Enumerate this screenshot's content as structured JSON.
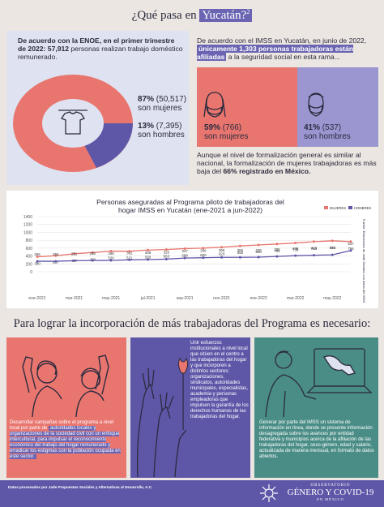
{
  "header": {
    "title_pre": "¿Qué pasa en ",
    "title_hl": "Yucatán?",
    "title_sup": "2"
  },
  "enoe": {
    "line1_bold": "De acuerdo con la ENOE, en el primer trimestre de 2022: 57,912",
    "line1_rest": " personas realizan trabajo doméstico remunerado.",
    "women_pct": "87%",
    "women_count": "(50,517)",
    "women_label": "son mujeres",
    "men_pct": "13%",
    "men_count": "(7,395)",
    "men_label": "son hombres",
    "women_share": 87,
    "men_share": 13
  },
  "imss": {
    "intro_pre": "De acuerdo con el IMSS en Yucatán, en junio de 2022, ",
    "intro_hl": "únicamente 1,303 personas trabajadoras están afiliadas",
    "intro_post": " a la seguridad social en esta rama...",
    "women_pct": "59%",
    "women_count": "(766)",
    "women_label": "son mujeres",
    "men_pct": "41%",
    "men_count": "(537)",
    "men_label": "son hombres",
    "note_pre": "Aunque el nivel de formalización general es similar al nacional, la formalización de mujeres trabajadoras es más baja del ",
    "note_bold": "66% registrado en México."
  },
  "chart_data": {
    "type": "line",
    "title": "Personas aseguradas al Programa piloto de trabajadoras del hogar IMSS en Yucatán (ene-2021 a jun-2022)",
    "x": [
      "ene-2021",
      "feb-2021",
      "mar-2021",
      "abr-2021",
      "may-2021",
      "jun-2021",
      "jul-2021",
      "ago-2021",
      "sep-2021",
      "oct-2021",
      "nov-2021",
      "dic-2021",
      "ene-2022",
      "feb-2022",
      "mar-2022",
      "abr-2022",
      "may-2022",
      "jun-2022"
    ],
    "x_ticks": [
      "ene-2021",
      "mar-2021",
      "may-2021",
      "jul-2021",
      "sep-2021",
      "nov-2021",
      "ene-2022",
      "mar-2022",
      "may-2022"
    ],
    "ylim": [
      0,
      1400
    ],
    "y_ticks": [
      0,
      200,
      400,
      600,
      800,
      1000,
      1200,
      1400
    ],
    "series": [
      {
        "name": "MUJERES",
        "color": "#e8766f",
        "values": [
          380,
          407,
          457,
          488,
          524,
          521,
          550,
          563,
          588,
          600,
          623,
          655,
          680,
          704,
          730,
          764,
          784,
          766
        ],
        "labels": [
          "380",
          "407",
          "457",
          "488",
          "524",
          "521",
          "550",
          "563",
          "588",
          "600",
          "623",
          "655",
          "680",
          "704",
          "730",
          "764",
          "784",
          "766"
        ]
      },
      {
        "name": "HOMBRES",
        "color": "#5e57a8",
        "values": [
          266,
          266,
          281,
          285,
          288,
          302,
          309,
          320,
          347,
          356,
          366,
          366,
          370,
          388,
          408,
          419,
          430,
          537
        ],
        "labels": [
          "266",
          "266",
          "281",
          "285",
          "288",
          "302",
          "309",
          "320",
          "347",
          "356",
          "366",
          "366",
          "370",
          "388",
          "408",
          "419",
          "430",
          "537"
        ]
      }
    ],
    "source": "Fuente: Elaboración de Jade Sociales con datos del IMSS"
  },
  "section": {
    "title": "Para lograr la incorporación de más trabajadoras del Programa es necesario:"
  },
  "actions": {
    "one_pre": "Desarrollar campañas sobre el programa a nivel local por parte de ",
    "one_rest": "autoridades locales y organizaciones de la sociedad civil con un enfoque intercultural, para impulsar el reconocimiento económico del trabajo del hogar remunerado y erradicar los estigmas con la población ocupada en este sector.",
    "two": "Unir esfuerzos institucionales a nivel local que sitúen en el centro a las trabajadoras del hogar y que incorporen a distintos sectores: organizaciones, sindicatos, autoridades municipales, especialistas, academia y personas empleadoras que impulsen la garantía de los derechos humanos de las trabajadoras del hogar.",
    "three": "Generar por parte del IMSS un sistema de información en línea, donde se presente información desagregada sobre los avances por entidad federativa y municipios acerca de la afiliación de las trabajadoras del hogar, sexo-género, edad y salario, actualizada de manera mensual, en formato de datos abiertos."
  },
  "footer": {
    "credit": "Datos procesados por Jade Propuestas Sociales y Alternativas al Desarrollo, A.C.",
    "logo_top": "OBSERVATORIO",
    "logo_main": "GÉNERO Y COVID-19",
    "logo_bottom": "EN MÉXICO"
  },
  "colors": {
    "coral": "#e8766f",
    "purple": "#5e57a8",
    "lavender": "#9b96d0",
    "panel": "#dfe3f1",
    "teal": "#4a8d86"
  }
}
